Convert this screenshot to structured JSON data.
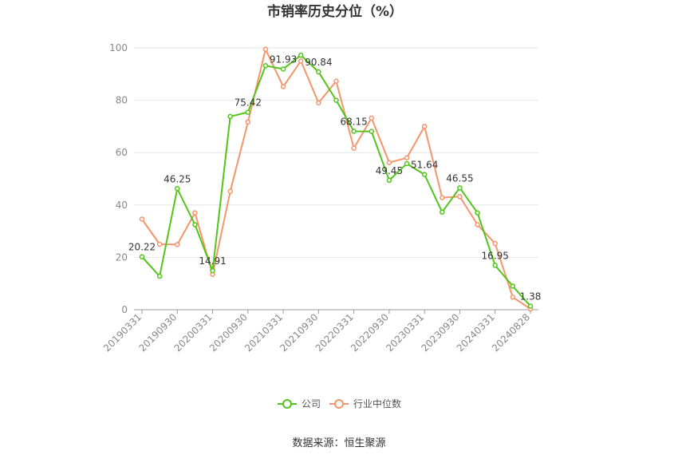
{
  "chart_data": {
    "type": "line",
    "title": "市销率历史分位（%）",
    "source": "数据来源：恒生聚源",
    "ylim": [
      0,
      100
    ],
    "yticks": [
      0,
      20,
      40,
      60,
      80,
      100
    ],
    "x": [
      "20190331",
      "20190630",
      "20190930",
      "20191231",
      "20200331",
      "20200630",
      "20200930",
      "20201231",
      "20210331",
      "20210630",
      "20210930",
      "20211231",
      "20220331",
      "20220630",
      "20220930",
      "20221231",
      "20230331",
      "20230630",
      "20230930",
      "20231231",
      "20240331",
      "20240630",
      "20240828"
    ],
    "xtick_labels": [
      "20190331",
      "20190930",
      "20200331",
      "20200930",
      "20210331",
      "20210930",
      "20220331",
      "20220930",
      "20230331",
      "20230930",
      "20240331",
      "20240828"
    ],
    "series": [
      {
        "name": "公司",
        "color": "#52c41a",
        "values": [
          20.22,
          12.8,
          46.25,
          32.5,
          14.91,
          73.8,
          75.42,
          93.2,
          91.93,
          97.2,
          90.84,
          80.0,
          68.15,
          68.1,
          49.45,
          55.8,
          51.64,
          37.3,
          46.55,
          37.0,
          16.95,
          9.0,
          1.38
        ]
      },
      {
        "name": "行业中位数",
        "color": "#f4956b",
        "values": [
          34.6,
          25.0,
          24.9,
          37.0,
          13.5,
          45.2,
          71.7,
          99.5,
          85.2,
          95.0,
          79.0,
          87.3,
          61.7,
          73.2,
          56.2,
          58.0,
          70.0,
          42.8,
          43.2,
          32.5,
          25.3,
          4.8,
          0.3
        ]
      }
    ],
    "data_labels": [
      {
        "index": 0,
        "text": "20.22"
      },
      {
        "index": 2,
        "text": "46.25"
      },
      {
        "index": 4,
        "text": "14.91"
      },
      {
        "index": 6,
        "text": "75.42"
      },
      {
        "index": 8,
        "text": "91.93"
      },
      {
        "index": 10,
        "text": "90.84"
      },
      {
        "index": 12,
        "text": "68.15"
      },
      {
        "index": 14,
        "text": "49.45"
      },
      {
        "index": 16,
        "text": "51.64"
      },
      {
        "index": 18,
        "text": "46.55"
      },
      {
        "index": 20,
        "text": "16.95"
      },
      {
        "index": 22,
        "text": "1.38"
      }
    ],
    "grid": true,
    "legend_position": "bottom-center"
  }
}
